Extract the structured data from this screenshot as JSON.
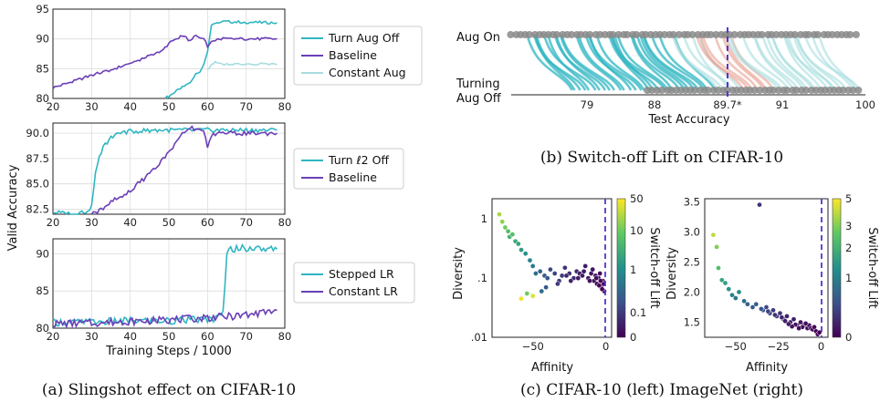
{
  "colors": {
    "teal": "#2fb6c2",
    "purple": "#6b3fb8",
    "light_teal": "#a8dde0",
    "salmon": "#e8a090",
    "gray": "#8a8a8a",
    "dash": "#5a35c8"
  },
  "captions": {
    "a": "(a)  Slingshot effect on CIFAR-10",
    "b": "(b)  Switch-off Lift on CIFAR-10",
    "c": "(c)  CIFAR-10 (left) ImageNet (right)"
  },
  "panel_a": {
    "ylabel": "Valid Accuracy",
    "xlabel": "Training Steps / 1000",
    "xticks": [
      "20",
      "30",
      "40",
      "50",
      "60",
      "70",
      "80"
    ]
  },
  "chart_data": [
    {
      "type": "line",
      "id": "a-top",
      "xlim": [
        20,
        80
      ],
      "ylim": [
        80,
        95
      ],
      "yticks": [
        "80",
        "85",
        "90",
        "95"
      ],
      "grid": true,
      "legend_position": "right",
      "series": [
        {
          "name": "Turn Aug Off",
          "x": [
            49,
            52,
            55,
            57,
            58,
            59,
            60,
            61,
            62,
            64,
            70,
            78
          ],
          "y": [
            80,
            81.2,
            82.5,
            84,
            84.5,
            85.5,
            88,
            92.5,
            92.8,
            92.9,
            92.8,
            92.7
          ]
        },
        {
          "name": "Baseline",
          "x": [
            20,
            25,
            30,
            35,
            40,
            45,
            48,
            50,
            52,
            54,
            55,
            57,
            59,
            60,
            61,
            64,
            70,
            78
          ],
          "y": [
            81.8,
            82.8,
            83.9,
            84.8,
            85.9,
            87.2,
            88,
            89.2,
            90.1,
            90.5,
            89.8,
            90.4,
            90.2,
            88.8,
            89.7,
            90,
            90,
            90
          ]
        },
        {
          "name": "Constant Aug",
          "x": [
            60,
            61,
            62,
            65,
            70,
            75,
            78
          ],
          "y": [
            85,
            85.7,
            86,
            85.8,
            85.7,
            85.8,
            85.7
          ]
        }
      ]
    },
    {
      "type": "line",
      "id": "a-mid",
      "xlim": [
        20,
        80
      ],
      "ylim": [
        82,
        91
      ],
      "yticks": [
        "82.5",
        "85.0",
        "87.5",
        "90.0"
      ],
      "grid": true,
      "legend_position": "right",
      "series": [
        {
          "name": "Turn ℓ2 Off",
          "x": [
            20,
            25,
            29,
            30,
            31,
            32,
            33,
            35,
            38,
            45,
            55,
            65,
            78
          ],
          "y": [
            82.2,
            82,
            82.3,
            82.8,
            86.2,
            87.5,
            88.6,
            89.7,
            90.1,
            90.3,
            90.3,
            90.3,
            90.3
          ]
        },
        {
          "name": "Baseline",
          "x": [
            30,
            32,
            35,
            38,
            40,
            42,
            45,
            48,
            50,
            52,
            54,
            55,
            57,
            59,
            60,
            61,
            64,
            70,
            78
          ],
          "y": [
            82,
            82.4,
            83.2,
            83.8,
            84.3,
            85,
            86,
            87.2,
            88.1,
            89.2,
            90.1,
            90.6,
            90.4,
            90.3,
            88.7,
            89.8,
            90,
            90,
            90
          ]
        }
      ]
    },
    {
      "type": "line",
      "id": "a-bot",
      "xlim": [
        20,
        80
      ],
      "ylim": [
        80,
        92
      ],
      "yticks": [
        "80",
        "85",
        "90"
      ],
      "grid": true,
      "legend_position": "right",
      "series": [
        {
          "name": "Stepped LR",
          "x": [
            20,
            30,
            40,
            50,
            60,
            63,
            64,
            65,
            66,
            70,
            78
          ],
          "y": [
            80.8,
            80.8,
            81,
            81,
            81.2,
            81.4,
            82,
            90.3,
            90.7,
            90.7,
            90.6
          ]
        },
        {
          "name": "Constant LR",
          "x": [
            20,
            30,
            40,
            50,
            60,
            70,
            78
          ],
          "y": [
            80.6,
            80.7,
            80.9,
            81.1,
            81.4,
            81.7,
            82.4
          ]
        }
      ]
    },
    {
      "type": "scatter",
      "id": "b",
      "xlabel": "Test Accuracy",
      "row_labels": [
        "Aug On",
        "Turning Aug Off"
      ],
      "xtick_labels": [
        "79",
        "88",
        "89.7*",
        "91",
        "100"
      ],
      "reference_value": "89.7*"
    },
    {
      "type": "scatter",
      "id": "c-left",
      "xlabel": "Affinity",
      "ylabel": "Diversity",
      "xlim": [
        -78,
        4
      ],
      "y_scale": "log",
      "yticks": [
        "1",
        ".1",
        ".01"
      ],
      "xticks": [
        "−50",
        "0"
      ],
      "colorbar_label": "Switch-off Lift",
      "colorbar_ticks": [
        "50",
        "10",
        "1",
        "0.1",
        "0"
      ],
      "points": [
        [
          -73,
          1.2
        ],
        [
          -71,
          0.9
        ],
        [
          -69,
          0.72
        ],
        [
          -67,
          0.62
        ],
        [
          -66,
          0.5
        ],
        [
          -64,
          0.55
        ],
        [
          -62,
          0.42
        ],
        [
          -60,
          0.38
        ],
        [
          -58,
          0.3
        ],
        [
          -55,
          0.26
        ],
        [
          -52,
          0.2
        ],
        [
          -50,
          0.16
        ],
        [
          -48,
          0.12
        ],
        [
          -45,
          0.13
        ],
        [
          -42,
          0.11
        ],
        [
          -40,
          0.1
        ],
        [
          -38,
          0.14
        ],
        [
          -35,
          0.12
        ],
        [
          -32,
          0.09
        ],
        [
          -30,
          0.11
        ],
        [
          -28,
          0.15
        ],
        [
          -25,
          0.12
        ],
        [
          -22,
          0.1
        ],
        [
          -20,
          0.13
        ],
        [
          -18,
          0.12
        ],
        [
          -16,
          0.11
        ],
        [
          -14,
          0.16
        ],
        [
          -12,
          0.1
        ],
        [
          -10,
          0.12
        ],
        [
          -9,
          0.14
        ],
        [
          -8,
          0.09
        ],
        [
          -7,
          0.11
        ],
        [
          -6,
          0.08
        ],
        [
          -5,
          0.1
        ],
        [
          -4,
          0.12
        ],
        [
          -3,
          0.07
        ],
        [
          -2,
          0.09
        ],
        [
          -1,
          0.06
        ],
        [
          -1.5,
          0.08
        ],
        [
          -2.5,
          0.065
        ],
        [
          -3.5,
          0.09
        ],
        [
          -4.5,
          0.075
        ],
        [
          -6.5,
          0.1
        ],
        [
          -11,
          0.09
        ],
        [
          -15,
          0.13
        ],
        [
          -19,
          0.1
        ],
        [
          -24,
          0.09
        ],
        [
          -27,
          0.11
        ],
        [
          -33,
          0.08
        ],
        [
          -41,
          0.07
        ],
        [
          -44,
          0.06
        ],
        [
          -50,
          0.05
        ],
        [
          -58,
          0.045
        ],
        [
          -54,
          0.055
        ]
      ],
      "point_lift": [
        30,
        25,
        20,
        15,
        12,
        15,
        10,
        9,
        8,
        6,
        5,
        4,
        3,
        2.5,
        2,
        2,
        1.5,
        1.2,
        1,
        1,
        0.9,
        0.8,
        0.7,
        0.6,
        0.5,
        0.4,
        0.4,
        0.3,
        0.3,
        0.2,
        0.2,
        0.2,
        0.1,
        0.1,
        0.1,
        0.05,
        0.05,
        0,
        0,
        0,
        0.05,
        0,
        0.1,
        0.2,
        0.3,
        0.3,
        0.5,
        0.6,
        1,
        2,
        3,
        40,
        45,
        20
      ]
    },
    {
      "type": "scatter",
      "id": "c-right",
      "xlabel": "Affinity",
      "ylabel": "Diversity",
      "xlim": [
        -68,
        4
      ],
      "ylim": [
        1.25,
        3.55
      ],
      "yticks": [
        "1.5",
        "2.0",
        "2.5",
        "3.0",
        "3.5"
      ],
      "xticks": [
        "−50",
        "−25",
        "0"
      ],
      "colorbar_label": "Switch-off Lift",
      "colorbar_ticks": [
        "5",
        "3",
        "2",
        "1",
        "0"
      ],
      "points": [
        [
          -63,
          2.95
        ],
        [
          -61,
          2.75
        ],
        [
          -60,
          2.4
        ],
        [
          -58,
          2.2
        ],
        [
          -56,
          2.15
        ],
        [
          -54,
          2.05
        ],
        [
          -52,
          1.95
        ],
        [
          -50,
          1.9
        ],
        [
          -48,
          2.0
        ],
        [
          -45,
          1.85
        ],
        [
          -43,
          1.8
        ],
        [
          -40,
          1.75
        ],
        [
          -38,
          1.8
        ],
        [
          -36,
          3.45
        ],
        [
          -34,
          1.7
        ],
        [
          -32,
          1.75
        ],
        [
          -30,
          1.65
        ],
        [
          -28,
          1.7
        ],
        [
          -26,
          1.6
        ],
        [
          -24,
          1.65
        ],
        [
          -22,
          1.55
        ],
        [
          -20,
          1.6
        ],
        [
          -18,
          1.5
        ],
        [
          -16,
          1.55
        ],
        [
          -14,
          1.45
        ],
        [
          -12,
          1.5
        ],
        [
          -10,
          1.45
        ],
        [
          -8,
          1.4
        ],
        [
          -7,
          1.45
        ],
        [
          -6,
          1.4
        ],
        [
          -5,
          1.38
        ],
        [
          -4,
          1.42
        ],
        [
          -3,
          1.35
        ],
        [
          -2,
          1.3
        ],
        [
          -1,
          1.33
        ],
        [
          -9,
          1.48
        ],
        [
          -11,
          1.42
        ],
        [
          -13,
          1.4
        ],
        [
          -15,
          1.46
        ],
        [
          -17,
          1.43
        ],
        [
          -19,
          1.47
        ],
        [
          -21,
          1.52
        ],
        [
          -23,
          1.58
        ],
        [
          -27,
          1.62
        ],
        [
          -31,
          1.68
        ],
        [
          -35,
          1.72
        ]
      ],
      "point_lift": [
        4.5,
        4,
        3.5,
        3,
        2.8,
        2.6,
        2.2,
        2,
        2.4,
        1.8,
        1.6,
        1.4,
        1.5,
        0.8,
        1.2,
        1.1,
        1,
        0.9,
        0.7,
        0.8,
        0.6,
        0.5,
        0.4,
        0.4,
        0.3,
        0.3,
        0.2,
        0.2,
        0.15,
        0.1,
        0.1,
        0.08,
        0.05,
        0.02,
        0,
        0.25,
        0.2,
        0.15,
        0.3,
        0.2,
        0.35,
        0.45,
        0.6,
        0.8,
        1,
        1.3
      ]
    }
  ]
}
